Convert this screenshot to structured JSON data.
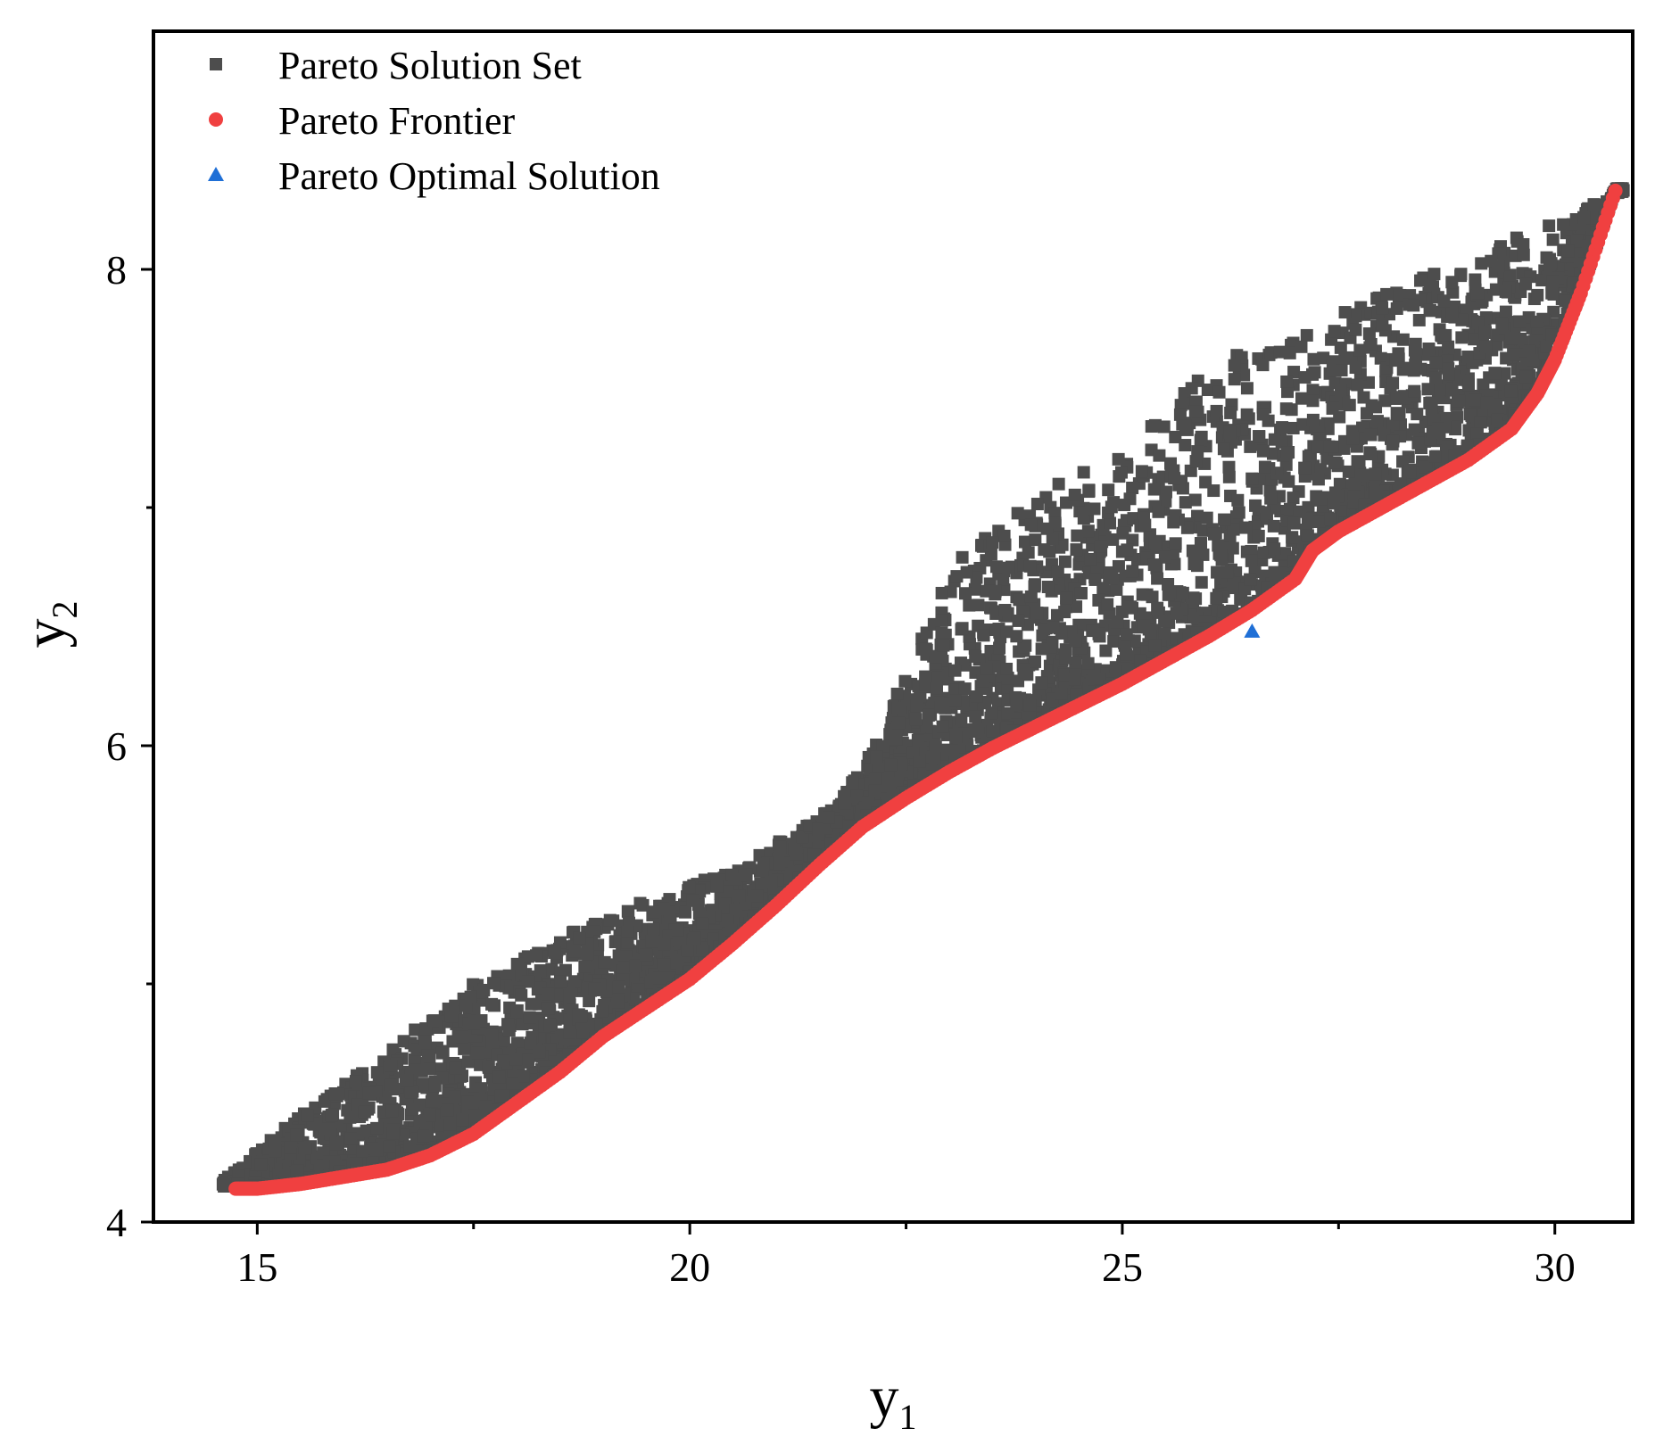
{
  "chart_data": {
    "type": "scatter",
    "title": "",
    "xlabel": "y",
    "xlabel_subscript": "1",
    "ylabel": "y",
    "ylabel_subscript": "2",
    "xlim": [
      13.8,
      30.9
    ],
    "ylim": [
      4.0,
      9.0
    ],
    "x_ticks": [
      15,
      20,
      25,
      30
    ],
    "x_minor_ticks": [
      17.5,
      22.5,
      27.5
    ],
    "y_ticks": [
      4,
      6,
      8
    ],
    "y_minor_ticks": [
      5,
      7
    ],
    "x_tick_labels": [
      "15",
      "20",
      "25",
      "30"
    ],
    "y_tick_labels": [
      "4",
      "6",
      "8"
    ],
    "grid": false,
    "legend_position": "top-left",
    "series": [
      {
        "name": "Pareto Solution Set",
        "marker": "square",
        "color": "#4d4d4d",
        "x_range": [
          14.6,
          30.8
        ],
        "upper_envelope": [
          [
            14.6,
            4.17
          ],
          [
            15.5,
            4.45
          ],
          [
            16.5,
            4.72
          ],
          [
            17.5,
            5.0
          ],
          [
            18.5,
            5.2
          ],
          [
            19.5,
            5.35
          ],
          [
            20.5,
            5.48
          ],
          [
            21.5,
            5.7
          ],
          [
            22.0,
            5.9
          ],
          [
            22.5,
            6.3
          ],
          [
            23.0,
            6.75
          ],
          [
            24.0,
            7.05
          ],
          [
            25.0,
            7.25
          ],
          [
            26.0,
            7.6
          ],
          [
            27.0,
            7.75
          ],
          [
            28.0,
            7.9
          ],
          [
            29.0,
            8.05
          ],
          [
            30.0,
            8.2
          ],
          [
            30.8,
            8.33
          ]
        ],
        "approx_point_count": 4000
      },
      {
        "name": "Pareto Frontier",
        "marker": "circle",
        "color": "#f04040",
        "x": [
          14.75,
          15.0,
          15.5,
          16.0,
          16.5,
          17.0,
          17.5,
          18.0,
          18.5,
          19.0,
          19.5,
          20.0,
          20.5,
          21.0,
          21.5,
          22.0,
          22.5,
          23.0,
          23.5,
          24.0,
          24.5,
          25.0,
          25.5,
          26.0,
          26.5,
          27.0,
          27.2,
          27.5,
          28.0,
          28.5,
          29.0,
          29.5,
          29.8,
          30.0,
          30.3,
          30.7
        ],
        "y": [
          4.14,
          4.14,
          4.16,
          4.19,
          4.22,
          4.28,
          4.37,
          4.5,
          4.63,
          4.78,
          4.9,
          5.02,
          5.17,
          5.33,
          5.5,
          5.66,
          5.78,
          5.89,
          5.99,
          6.08,
          6.17,
          6.26,
          6.36,
          6.46,
          6.57,
          6.7,
          6.82,
          6.9,
          7.0,
          7.1,
          7.2,
          7.33,
          7.48,
          7.62,
          7.9,
          8.33
        ]
      },
      {
        "name": "Pareto Optimal Solution",
        "marker": "triangle",
        "color": "#1f6fd6",
        "x": [
          26.5
        ],
        "y": [
          6.48
        ]
      }
    ]
  }
}
